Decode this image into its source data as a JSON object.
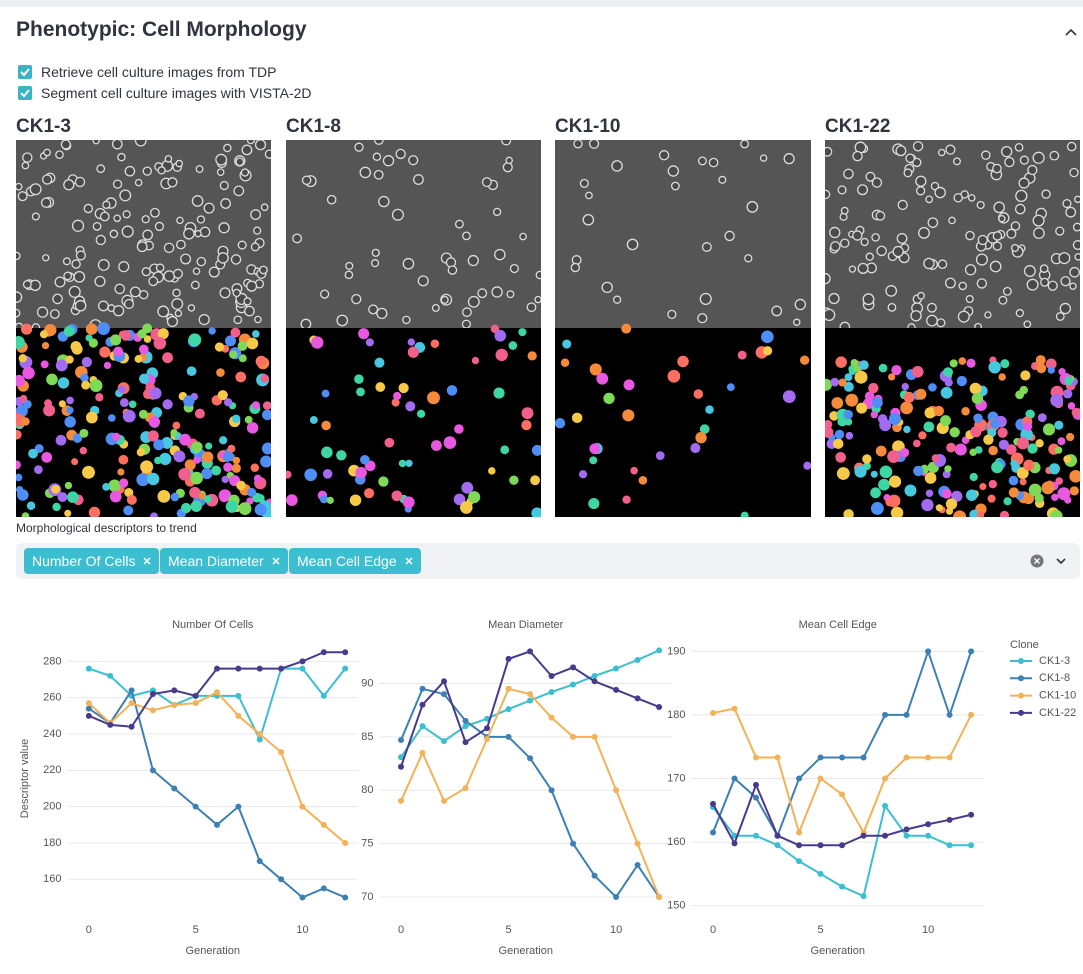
{
  "header": {
    "title": "Phenotypic: Cell Morphology"
  },
  "options": [
    "Retrieve cell culture images from TDP",
    "Segment cell culture images with VISTA-2D"
  ],
  "image_labels": [
    "CK1-3",
    "CK1-8",
    "CK1-10",
    "CK1-22"
  ],
  "descriptor_select": {
    "label": "Morphological descriptors to trend",
    "chips": [
      "Number Of Cells",
      "Mean Diameter",
      "Mean Cell Edge"
    ]
  },
  "chart_data": [
    {
      "type": "line",
      "title": "Number Of Cells",
      "x_label": "Generation",
      "y_label": "Descriptor value",
      "x": [
        0,
        1,
        2,
        3,
        4,
        5,
        6,
        7,
        8,
        9,
        10,
        11,
        12
      ],
      "xlim": [
        -1,
        12.6
      ],
      "xticks": [
        0,
        5,
        10
      ],
      "ylim": [
        142,
        289
      ],
      "yticks": [
        160,
        180,
        200,
        220,
        240,
        260,
        280
      ],
      "grid": true,
      "series": [
        {
          "name": "CK1-3",
          "color": "#3bbfd0",
          "values": [
            276,
            272,
            261,
            264,
            256,
            261,
            261,
            261,
            237,
            276,
            276,
            261,
            276
          ]
        },
        {
          "name": "CK1-8",
          "color": "#3d80b3",
          "values": [
            254,
            246,
            264,
            220,
            210,
            200,
            190,
            200,
            170,
            160,
            150,
            155,
            150
          ]
        },
        {
          "name": "CK1-10",
          "color": "#f2b257",
          "values": [
            257,
            246,
            257,
            253,
            256,
            257,
            263,
            250,
            240,
            230,
            200,
            190,
            180
          ]
        },
        {
          "name": "CK1-22",
          "color": "#4a3a8c",
          "values": [
            250,
            245,
            244,
            262,
            264,
            261,
            276,
            276,
            276,
            276,
            280,
            285,
            285
          ]
        }
      ]
    },
    {
      "type": "line",
      "title": "Mean Diameter",
      "x_label": "Generation",
      "x": [
        0,
        1,
        2,
        3,
        4,
        5,
        6,
        7,
        8,
        9,
        10,
        11,
        12
      ],
      "xlim": [
        -1,
        12.6
      ],
      "xticks": [
        0,
        5,
        10
      ],
      "ylim": [
        68.6,
        93.6
      ],
      "yticks": [
        70,
        75,
        80,
        85,
        90
      ],
      "grid": true,
      "series": [
        {
          "name": "CK1-3",
          "color": "#3bbfd0",
          "values": [
            83.1,
            86,
            84.6,
            86,
            86.7,
            87.6,
            88.4,
            89.2,
            89.9,
            90.7,
            91.4,
            92.2,
            93.1
          ]
        },
        {
          "name": "CK1-8",
          "color": "#3d80b3",
          "values": [
            84.7,
            89.5,
            89,
            86.5,
            85,
            85,
            83,
            80,
            75,
            72,
            70,
            73,
            70
          ]
        },
        {
          "name": "CK1-10",
          "color": "#f2b257",
          "values": [
            79,
            83.5,
            79,
            80.2,
            84.8,
            89.5,
            89,
            86.8,
            85,
            85,
            80,
            75,
            70
          ]
        },
        {
          "name": "CK1-22",
          "color": "#4a3a8c",
          "values": [
            82.2,
            88,
            90.2,
            84.5,
            85.8,
            92.3,
            93,
            90.7,
            91.5,
            90.2,
            89.4,
            88.6,
            87.8
          ]
        }
      ]
    },
    {
      "type": "line",
      "title": "Mean Cell Edge",
      "x_label": "Generation",
      "x": [
        0,
        1,
        2,
        3,
        4,
        5,
        6,
        7,
        8,
        9,
        10,
        11,
        12
      ],
      "xlim": [
        -1,
        12.6
      ],
      "xticks": [
        0,
        5,
        10
      ],
      "ylim": [
        149,
        191
      ],
      "yticks": [
        150,
        160,
        170,
        180,
        190
      ],
      "grid": true,
      "legend": "right",
      "legend_title": "Clone",
      "series": [
        {
          "name": "CK1-3",
          "color": "#3bbfd0",
          "values": [
            165.5,
            161,
            161,
            159.5,
            157,
            155,
            153,
            151.5,
            165.7,
            161,
            161,
            159.5,
            159.5
          ]
        },
        {
          "name": "CK1-8",
          "color": "#3d80b3",
          "values": [
            161.5,
            170,
            167,
            161,
            170,
            173.3,
            173.3,
            173.3,
            180,
            180,
            190,
            180,
            190
          ]
        },
        {
          "name": "CK1-10",
          "color": "#f2b257",
          "values": [
            180.3,
            181,
            173.3,
            173.3,
            161.5,
            170,
            167.5,
            161.5,
            170,
            173.3,
            173.3,
            173.3,
            180
          ]
        },
        {
          "name": "CK1-22",
          "color": "#4a3a8c",
          "values": [
            166,
            159.8,
            169,
            161,
            159.5,
            159.5,
            159.5,
            161,
            161,
            162,
            162.8,
            163.5,
            164.3
          ]
        }
      ]
    }
  ]
}
